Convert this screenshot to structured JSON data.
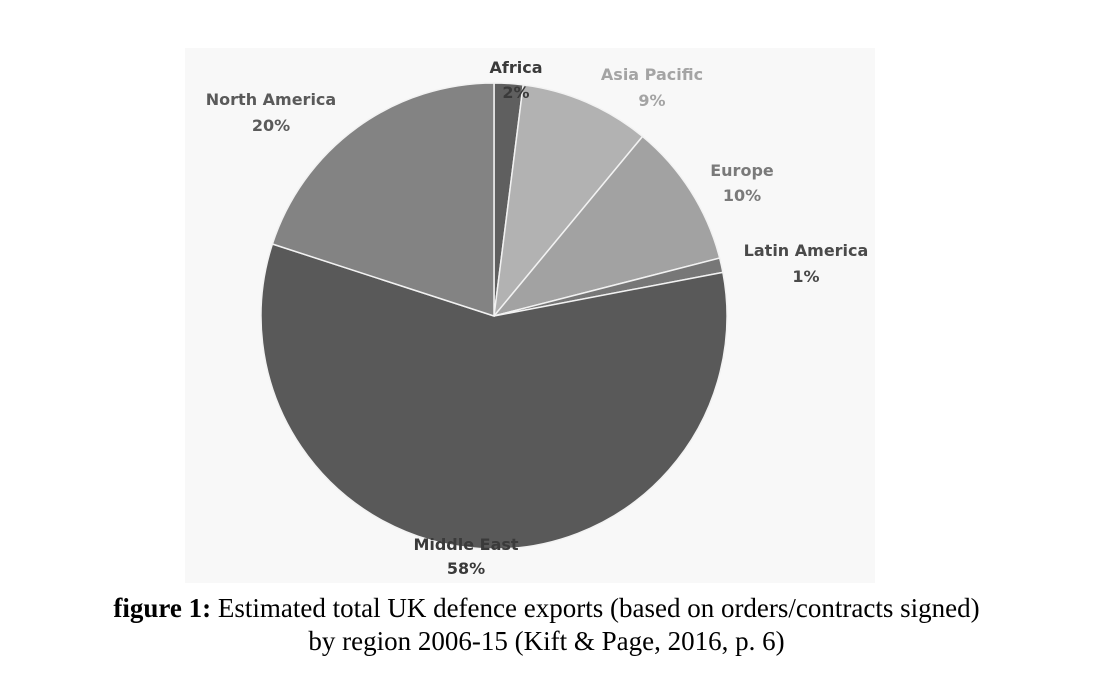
{
  "chart_data": {
    "type": "pie",
    "slices": [
      {
        "label": "Africa",
        "value": 2,
        "value_label": "2%",
        "color": "#5f5f5f",
        "label_color": "#3a3a3a"
      },
      {
        "label": "Asia Pacific",
        "value": 9,
        "value_label": "9%",
        "color": "#b2b2b2",
        "label_color": "#a4a4a4"
      },
      {
        "label": "Europe",
        "value": 10,
        "value_label": "10%",
        "color": "#a2a2a2",
        "label_color": "#7a7a7a"
      },
      {
        "label": "Latin America",
        "value": 1,
        "value_label": "1%",
        "color": "#777777",
        "label_color": "#4a4a4a"
      },
      {
        "label": "Middle East",
        "value": 58,
        "value_label": "58%",
        "color": "#595959",
        "label_color": "#3a3a3a"
      },
      {
        "label": "North America",
        "value": 20,
        "value_label": "20%",
        "color": "#838383",
        "label_color": "#5a5a5a"
      }
    ]
  },
  "caption": {
    "label": "figure 1:",
    "text": " Estimated total UK defence exports (based on orders/contracts signed)",
    "line2": "by region 2006-15 (Kift & Page, 2016, p. 6)"
  }
}
